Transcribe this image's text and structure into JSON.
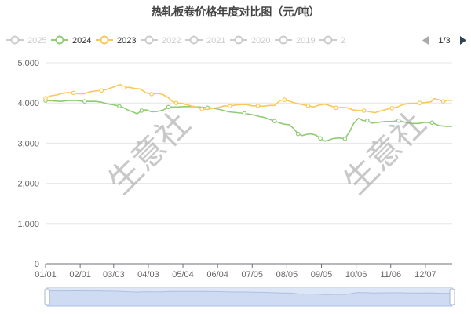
{
  "page": {
    "watermark_text": "生意社",
    "legend_pager": "1/3",
    "colors": {
      "series_2024": "#91cc75",
      "series_2023": "#fac858",
      "inactive_legend": "#cccccc",
      "slider_fill": "#dde6f7",
      "slider_border": "#c5d3ee",
      "slider_line": "#aebfe0"
    }
  },
  "chart_data": {
    "type": "line",
    "title": "热轧板卷价格年度对比图（元/吨）",
    "legend": [
      {
        "name": "2025",
        "active": false
      },
      {
        "name": "2024",
        "active": true
      },
      {
        "name": "2023",
        "active": true
      },
      {
        "name": "2022",
        "active": false
      },
      {
        "name": "2021",
        "active": false
      },
      {
        "name": "2020",
        "active": false
      },
      {
        "name": "2019",
        "active": false
      },
      {
        "name": "2",
        "active": false
      }
    ],
    "x_axis": {
      "type": "day_of_year",
      "range_days": [
        0,
        364
      ],
      "ticks": [
        {
          "label": "01/01",
          "day": 0
        },
        {
          "label": "02/01",
          "day": 31
        },
        {
          "label": "03/03",
          "day": 61
        },
        {
          "label": "04/03",
          "day": 92
        },
        {
          "label": "05/04",
          "day": 123
        },
        {
          "label": "06/04",
          "day": 154
        },
        {
          "label": "07/05",
          "day": 185
        },
        {
          "label": "08/05",
          "day": 216
        },
        {
          "label": "09/05",
          "day": 247
        },
        {
          "label": "10/06",
          "day": 278
        },
        {
          "label": "11/06",
          "day": 309
        },
        {
          "label": "12/07",
          "day": 340
        }
      ]
    },
    "y_axis": {
      "ylim": [
        0,
        5000
      ],
      "ticks": [
        {
          "label": "0",
          "value": 0
        },
        {
          "label": "1,000",
          "value": 1000
        },
        {
          "label": "2,000",
          "value": 2000
        },
        {
          "label": "3,000",
          "value": 3000
        },
        {
          "label": "4,000",
          "value": 4000
        },
        {
          "label": "5,000",
          "value": 5000
        }
      ]
    },
    "grid": true,
    "legend_position": "top",
    "series": [
      {
        "name": "2024",
        "color": "#91cc75",
        "points": [
          [
            0,
            4060
          ],
          [
            7,
            4050
          ],
          [
            14,
            4040
          ],
          [
            20,
            4060
          ],
          [
            28,
            4060
          ],
          [
            35,
            4040
          ],
          [
            45,
            4040
          ],
          [
            50,
            4020
          ],
          [
            55,
            3980
          ],
          [
            62,
            3950
          ],
          [
            66,
            3920
          ],
          [
            70,
            3880
          ],
          [
            74,
            3820
          ],
          [
            78,
            3780
          ],
          [
            82,
            3730
          ],
          [
            86,
            3810
          ],
          [
            90,
            3830
          ],
          [
            95,
            3780
          ],
          [
            100,
            3790
          ],
          [
            105,
            3820
          ],
          [
            110,
            3900
          ],
          [
            118,
            3900
          ],
          [
            124,
            3910
          ],
          [
            131,
            3910
          ],
          [
            138,
            3900
          ],
          [
            145,
            3880
          ],
          [
            150,
            3870
          ],
          [
            157,
            3830
          ],
          [
            164,
            3780
          ],
          [
            171,
            3760
          ],
          [
            178,
            3740
          ],
          [
            185,
            3710
          ],
          [
            192,
            3660
          ],
          [
            196,
            3640
          ],
          [
            200,
            3600
          ],
          [
            205,
            3550
          ],
          [
            210,
            3500
          ],
          [
            214,
            3470
          ],
          [
            218,
            3460
          ],
          [
            222,
            3370
          ],
          [
            226,
            3230
          ],
          [
            230,
            3190
          ],
          [
            234,
            3220
          ],
          [
            238,
            3230
          ],
          [
            242,
            3200
          ],
          [
            246,
            3120
          ],
          [
            250,
            3050
          ],
          [
            253,
            3070
          ],
          [
            258,
            3120
          ],
          [
            263,
            3130
          ],
          [
            268,
            3110
          ],
          [
            272,
            3280
          ],
          [
            276,
            3500
          ],
          [
            280,
            3620
          ],
          [
            284,
            3560
          ],
          [
            288,
            3560
          ],
          [
            292,
            3500
          ],
          [
            298,
            3520
          ],
          [
            304,
            3540
          ],
          [
            310,
            3540
          ],
          [
            316,
            3560
          ],
          [
            322,
            3520
          ],
          [
            328,
            3490
          ],
          [
            334,
            3490
          ],
          [
            340,
            3520
          ],
          [
            346,
            3510
          ],
          [
            352,
            3440
          ],
          [
            358,
            3420
          ],
          [
            364,
            3420
          ]
        ]
      },
      {
        "name": "2023",
        "color": "#fac858",
        "points": [
          [
            0,
            4120
          ],
          [
            5,
            4180
          ],
          [
            10,
            4200
          ],
          [
            15,
            4240
          ],
          [
            20,
            4260
          ],
          [
            25,
            4250
          ],
          [
            30,
            4230
          ],
          [
            35,
            4230
          ],
          [
            40,
            4280
          ],
          [
            45,
            4300
          ],
          [
            50,
            4310
          ],
          [
            55,
            4340
          ],
          [
            60,
            4390
          ],
          [
            64,
            4430
          ],
          [
            67,
            4460
          ],
          [
            70,
            4380
          ],
          [
            75,
            4390
          ],
          [
            80,
            4360
          ],
          [
            85,
            4350
          ],
          [
            90,
            4250
          ],
          [
            95,
            4220
          ],
          [
            100,
            4240
          ],
          [
            105,
            4210
          ],
          [
            110,
            4130
          ],
          [
            113,
            4050
          ],
          [
            117,
            4000
          ],
          [
            122,
            3990
          ],
          [
            126,
            3960
          ],
          [
            130,
            3930
          ],
          [
            135,
            3900
          ],
          [
            140,
            3850
          ],
          [
            145,
            3840
          ],
          [
            150,
            3870
          ],
          [
            155,
            3890
          ],
          [
            160,
            3930
          ],
          [
            165,
            3920
          ],
          [
            170,
            3950
          ],
          [
            175,
            3960
          ],
          [
            180,
            3960
          ],
          [
            185,
            3930
          ],
          [
            190,
            3930
          ],
          [
            195,
            3920
          ],
          [
            200,
            3940
          ],
          [
            205,
            3940
          ],
          [
            210,
            4060
          ],
          [
            214,
            4080
          ],
          [
            218,
            4050
          ],
          [
            222,
            4010
          ],
          [
            226,
            3980
          ],
          [
            230,
            3960
          ],
          [
            235,
            3930
          ],
          [
            240,
            3900
          ],
          [
            245,
            3950
          ],
          [
            250,
            3970
          ],
          [
            255,
            3930
          ],
          [
            260,
            3880
          ],
          [
            265,
            3890
          ],
          [
            270,
            3880
          ],
          [
            275,
            3830
          ],
          [
            280,
            3810
          ],
          [
            285,
            3810
          ],
          [
            290,
            3780
          ],
          [
            295,
            3760
          ],
          [
            300,
            3800
          ],
          [
            305,
            3840
          ],
          [
            310,
            3870
          ],
          [
            315,
            3900
          ],
          [
            320,
            3960
          ],
          [
            325,
            3990
          ],
          [
            330,
            3990
          ],
          [
            335,
            4000
          ],
          [
            340,
            4010
          ],
          [
            345,
            4030
          ],
          [
            348,
            4110
          ],
          [
            352,
            4080
          ],
          [
            356,
            4040
          ],
          [
            360,
            4070
          ],
          [
            364,
            4060
          ]
        ]
      }
    ]
  }
}
